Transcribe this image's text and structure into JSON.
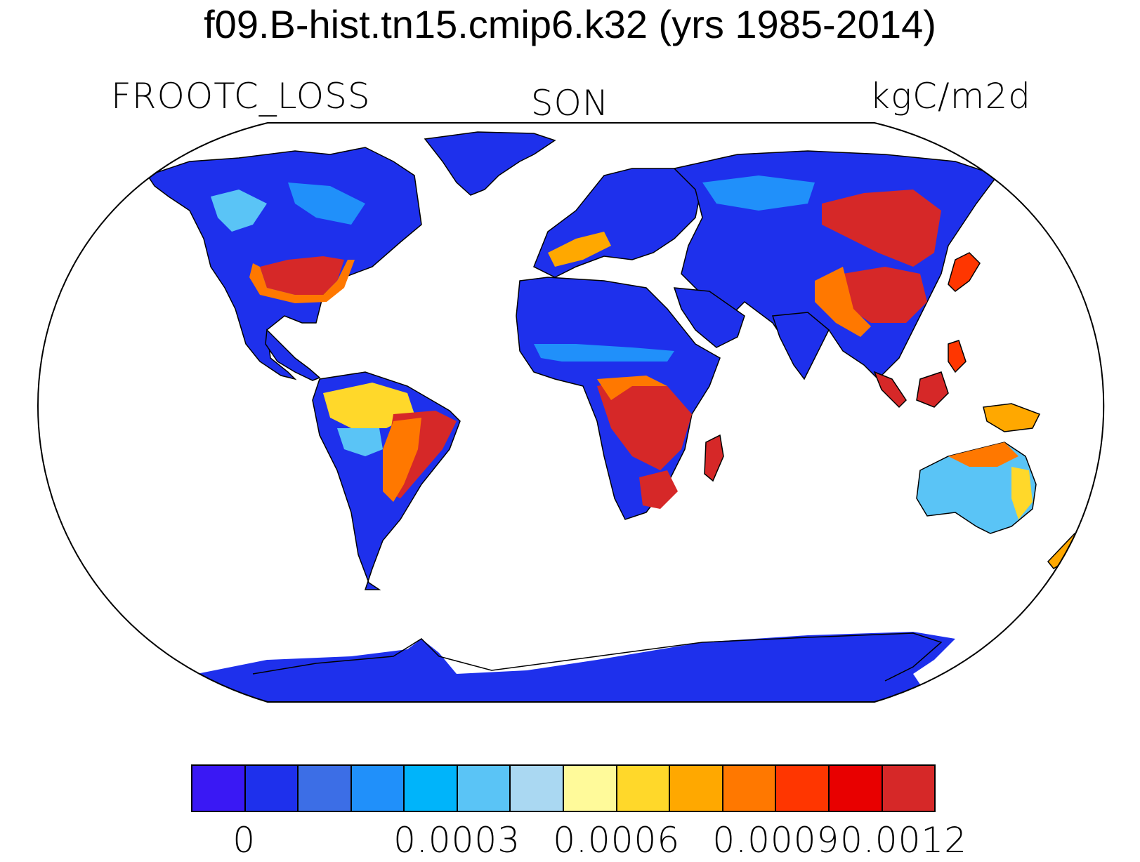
{
  "title": "f09.B-hist.tn15.cmip6.k32 (yrs 1985-2014)",
  "variable": "FROOTC_LOSS",
  "season": "SON",
  "units": "kgC/m2d",
  "projection": "robinson",
  "colorbar": {
    "colors": [
      "#3a18f4",
      "#1e30ec",
      "#3c6ee6",
      "#2090fa",
      "#00b4fa",
      "#5ac4f6",
      "#aad8f2",
      "#fffa9a",
      "#ffd82a",
      "#ffa800",
      "#ff7800",
      "#ff3600",
      "#e80000",
      "#d62828"
    ],
    "tick_labels": [
      "0",
      "0.0003",
      "0.0006",
      "0.0009",
      "0.0012"
    ],
    "tick_boundaries": [
      1,
      5,
      8,
      11,
      14
    ]
  }
}
